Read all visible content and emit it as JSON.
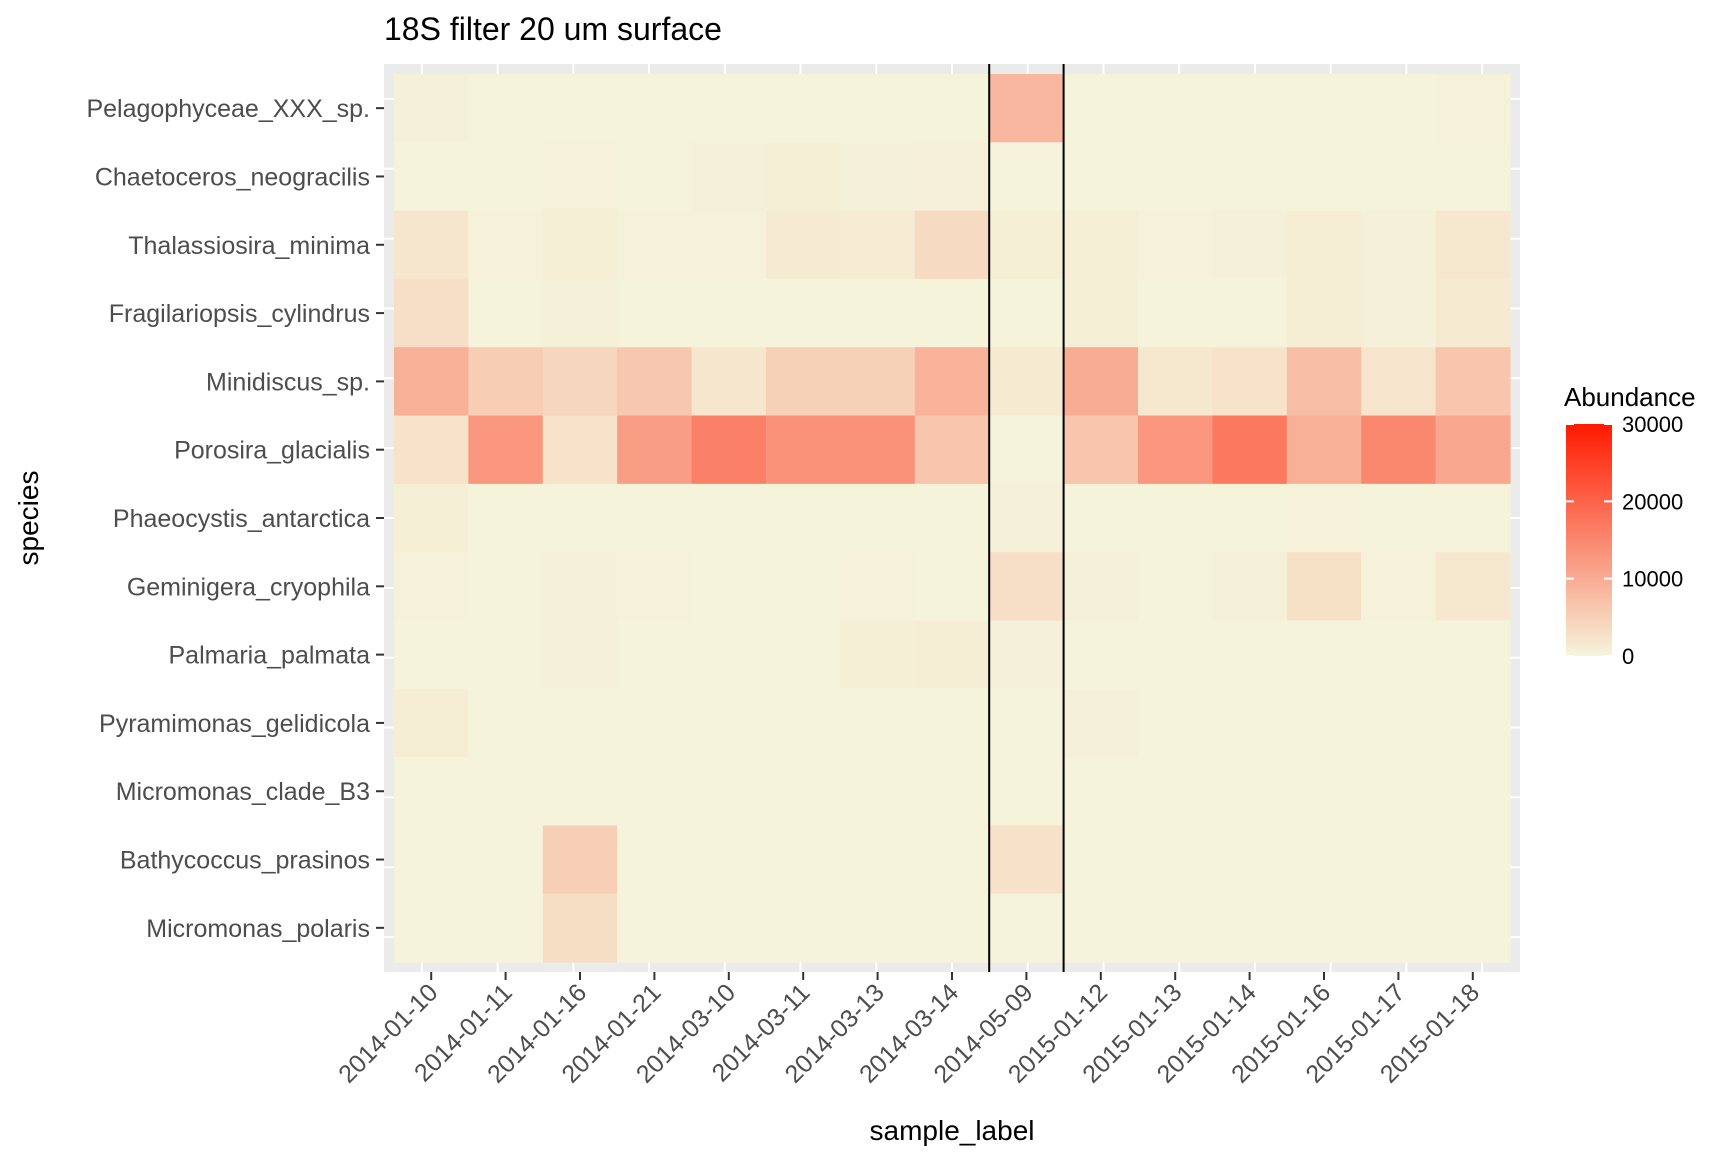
{
  "chart_data": {
    "type": "heatmap",
    "title": "18S filter 20 um surface",
    "xlabel": "sample_label",
    "ylabel": "species",
    "x": [
      "2014-01-10",
      "2014-01-11",
      "2014-01-16",
      "2014-01-21",
      "2014-03-10",
      "2014-03-11",
      "2014-03-13",
      "2014-03-14",
      "2014-05-09",
      "2015-01-12",
      "2015-01-13",
      "2015-01-14",
      "2015-01-16",
      "2015-01-17",
      "2015-01-18"
    ],
    "y": [
      "Pelagophyceae_XXX_sp.",
      "Chaetoceros_neogracilis",
      "Thalassiosira_minima",
      "Fragilariopsis_cylindrus",
      "Minidiscus_sp.",
      "Porosira_glacialis",
      "Phaeocystis_antarctica",
      "Geminigera_cryophila",
      "Palmaria_palmata",
      "Pyramimonas_gelidicola",
      "Micromonas_clade_B3",
      "Bathycoccus_prasinos",
      "Micromonas_polaris"
    ],
    "values": [
      [
        600,
        200,
        200,
        200,
        200,
        200,
        200,
        200,
        8500,
        200,
        200,
        200,
        200,
        200,
        400
      ],
      [
        200,
        200,
        400,
        200,
        500,
        800,
        600,
        700,
        100,
        200,
        200,
        300,
        300,
        300,
        300
      ],
      [
        2000,
        400,
        800,
        400,
        400,
        1400,
        1200,
        3500,
        800,
        800,
        400,
        500,
        1000,
        500,
        1800
      ],
      [
        3000,
        200,
        600,
        200,
        300,
        300,
        300,
        300,
        300,
        800,
        300,
        300,
        1000,
        500,
        1500
      ],
      [
        9500,
        5500,
        4200,
        6200,
        2000,
        5000,
        5000,
        9000,
        1500,
        10000,
        1800,
        2400,
        7500,
        2200,
        6500
      ],
      [
        2400,
        13000,
        2400,
        12000,
        16000,
        13500,
        13500,
        6500,
        300,
        6500,
        13000,
        17000,
        9500,
        15000,
        10500
      ],
      [
        800,
        200,
        200,
        200,
        200,
        200,
        200,
        200,
        600,
        200,
        200,
        200,
        400,
        200,
        200
      ],
      [
        400,
        200,
        600,
        400,
        300,
        200,
        400,
        200,
        3000,
        600,
        200,
        600,
        2800,
        400,
        1800
      ],
      [
        200,
        200,
        600,
        300,
        200,
        300,
        800,
        900,
        600,
        200,
        200,
        200,
        200,
        200,
        200
      ],
      [
        900,
        200,
        200,
        200,
        200,
        200,
        200,
        200,
        200,
        500,
        200,
        200,
        200,
        200,
        200
      ],
      [
        200,
        200,
        200,
        200,
        200,
        200,
        200,
        200,
        200,
        200,
        200,
        200,
        200,
        200,
        200
      ],
      [
        200,
        200,
        5200,
        200,
        200,
        200,
        200,
        200,
        2600,
        200,
        200,
        200,
        200,
        200,
        200
      ],
      [
        300,
        200,
        3200,
        200,
        200,
        200,
        200,
        200,
        300,
        200,
        200,
        200,
        200,
        200,
        200
      ]
    ],
    "vertical_lines_between": [
      "2014-03-14",
      "2014-05-09",
      "2015-01-12"
    ],
    "legend": {
      "title": "Abundance",
      "position": "right",
      "ticks": [
        0,
        10000,
        20000,
        30000
      ],
      "range": [
        0,
        30000
      ],
      "color_low": "#f5f5dc",
      "color_high": "#ff1a00"
    },
    "grid": true
  }
}
